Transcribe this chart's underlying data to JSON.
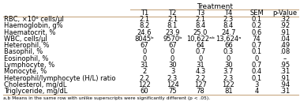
{
  "title": "Treatment",
  "columns": [
    "T1",
    "T2",
    "T3",
    "T4",
    "SEM",
    "p-Value"
  ],
  "rows": [
    [
      "RBC, ×10⁶ cells/µl",
      "2.1",
      "2.1",
      "2.1",
      "2.3",
      "0.1",
      ".32"
    ],
    [
      "Haemoglobin, g%",
      "8.2",
      "8.1",
      "8.4",
      "8.4",
      "0.2",
      ".92"
    ],
    [
      "Haematocrit, %",
      "24.6",
      "23.9",
      "25.0",
      "24.7",
      "0.6",
      ".91"
    ],
    [
      "WBC, cells/µl",
      "8045ᵇ",
      "9570ᵇ",
      "10,622ᵃᵇ",
      "13,624ᵃ",
      "74",
      ".04"
    ],
    [
      "Heterophil, %",
      "67",
      "67",
      "64",
      "66",
      "0.7",
      ".49"
    ],
    [
      "Basophil, %",
      "0",
      "0",
      "0.7",
      "0.3",
      "0.1",
      ".08"
    ],
    [
      "Eosinophil, %",
      "0",
      "0",
      "0",
      "0",
      "0",
      "–"
    ],
    [
      "Lymphocyte, %",
      "31",
      "30",
      "31",
      "30",
      "0.7",
      ".95"
    ],
    [
      "Monocyte, %",
      "2",
      "3",
      "4.3",
      "3.7",
      "0.4",
      ".31"
    ],
    [
      "Heterophil/lymphocyte (H/L) ratio",
      "2.2",
      "2.3",
      "2.2",
      "2.3",
      "0.1",
      ".91"
    ],
    [
      "Cholesterol, mg/dL",
      "122",
      "124",
      "127",
      "122",
      "3",
      ".94"
    ],
    [
      "Triglyceride, mg/dL",
      "60",
      "75",
      "78",
      "81",
      "4",
      ".31"
    ]
  ],
  "footnote": "a,b Means in the same row with unlike superscripts were significantly different (p < .05).",
  "header_line_color": "#c8a882",
  "bg_color": "#ffffff",
  "text_color": "#000000",
  "font_size": 6.0,
  "header_font_size": 6.5
}
